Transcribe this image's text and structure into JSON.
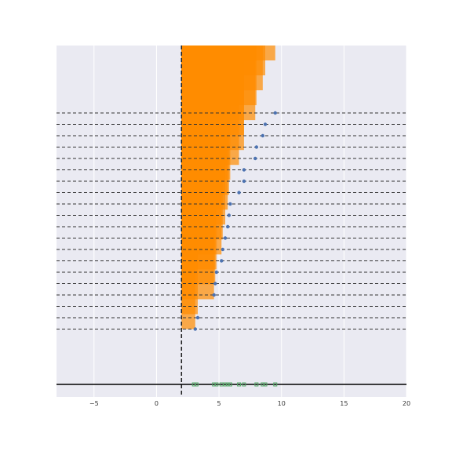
{
  "colors": {
    "background": "#eaeaf2",
    "grid": "#ffffff",
    "bar_fill": "#ff8c00",
    "point": "#4c72b0",
    "rug": "#55a868",
    "reference_line": "#222222",
    "guide_line": "#333333",
    "axis_line": "#000000"
  },
  "chart_data": {
    "type": "bar",
    "orientation": "horizontal",
    "title": "",
    "xlabel": "",
    "ylabel": "",
    "xlim": [
      -8,
      20
    ],
    "x_ticks": [
      -5,
      0,
      5,
      10,
      15,
      20
    ],
    "x_tick_labels": [
      "−5",
      "0",
      "5",
      "10",
      "15",
      "20"
    ],
    "grid": true,
    "y_hidden": true,
    "reference_x": 2,
    "data_range": [
      0,
      20
    ],
    "sorted_values": [
      3.1,
      3.3,
      4.6,
      4.7,
      4.8,
      5.2,
      5.3,
      5.5,
      5.7,
      5.8,
      5.9,
      6.6,
      7.0,
      7.0,
      7.9,
      8.0,
      8.5,
      8.7,
      9.5
    ],
    "points_on_guides": [
      {
        "row": 0,
        "value": 9.5
      },
      {
        "row": 1,
        "value": 8.7
      },
      {
        "row": 2,
        "value": 8.5
      },
      {
        "row": 3,
        "value": 8.0
      },
      {
        "row": 4,
        "value": 7.9
      },
      {
        "row": 5,
        "value": 7.0
      },
      {
        "row": 6,
        "value": 7.0
      },
      {
        "row": 7,
        "value": 6.6
      },
      {
        "row": 8,
        "value": 5.9
      },
      {
        "row": 9,
        "value": 5.8
      },
      {
        "row": 10,
        "value": 5.7
      },
      {
        "row": 11,
        "value": 5.5
      },
      {
        "row": 12,
        "value": 5.3
      },
      {
        "row": 13,
        "value": 5.2
      },
      {
        "row": 14,
        "value": 4.8
      },
      {
        "row": 15,
        "value": 4.7
      },
      {
        "row": 16,
        "value": 4.6
      },
      {
        "row": 18,
        "value": 3.3
      },
      {
        "row": 19,
        "value": 3.1
      }
    ],
    "rug_values": [
      3.0,
      3.2,
      4.6,
      4.8,
      5.2,
      5.5,
      5.7,
      5.9,
      6.6,
      7.0,
      8.0,
      8.5,
      8.7,
      9.5
    ]
  }
}
